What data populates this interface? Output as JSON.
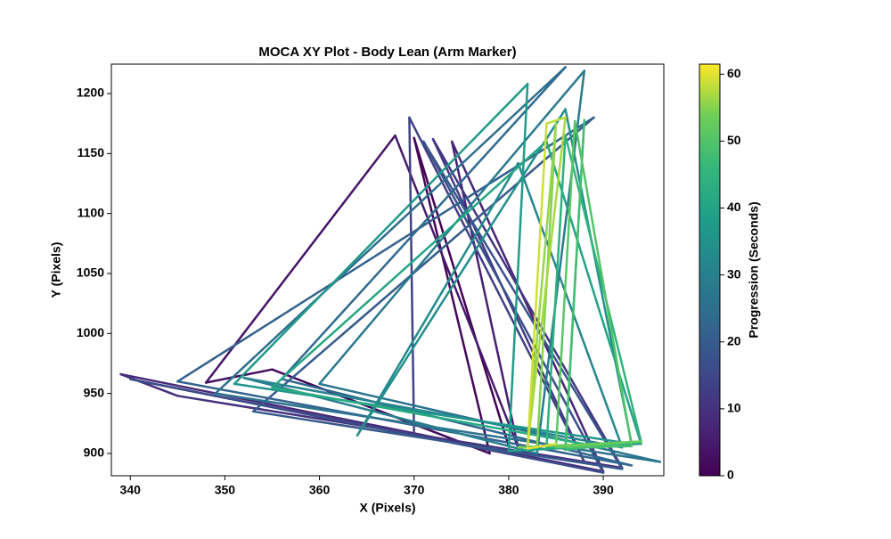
{
  "chart_data": {
    "type": "line",
    "title": "MOCA XY Plot - Body Lean (Arm Marker)",
    "xlabel": "X (Pixels)",
    "ylabel": "Y (Pixels)",
    "x": [
      380,
      370,
      378,
      355,
      348,
      368,
      381,
      374,
      390,
      339,
      345,
      392,
      372,
      388,
      369.5,
      370,
      340,
      390,
      371,
      392,
      353,
      389,
      345,
      393,
      356,
      386,
      349,
      396,
      360,
      388,
      383,
      352,
      392,
      381,
      364,
      386,
      393,
      351,
      382,
      380,
      394,
      384,
      355,
      390,
      384,
      386,
      394,
      386,
      388,
      386,
      393,
      387,
      385,
      394,
      381,
      383,
      385,
      382,
      386,
      384,
      382,
      385
    ],
    "values": [
      906,
      1163,
      900,
      970,
      959,
      1165,
      905,
      1160,
      885,
      966,
      948,
      888,
      1162,
      893,
      1180,
      915,
      962,
      884,
      1160,
      887,
      935,
      1180,
      960,
      890,
      962,
      1222,
      950,
      893,
      958,
      1219,
      900,
      963,
      905,
      1142,
      915,
      1187,
      908,
      958,
      1208,
      902,
      908,
      1160,
      955,
      905,
      905,
      1165,
      910,
      903,
      1178,
      905,
      906,
      1177,
      905,
      910,
      905,
      905,
      1175,
      906,
      1180,
      1175,
      904,
      908
    ],
    "c": [
      0,
      1,
      2,
      3,
      4,
      5,
      6,
      7,
      8,
      9,
      10,
      11,
      12,
      13,
      14,
      15,
      16,
      17,
      18,
      19,
      20,
      21,
      22,
      23,
      24,
      25,
      26,
      27,
      28,
      29,
      30,
      31,
      32,
      33,
      34,
      35,
      36,
      37,
      38,
      39,
      40,
      41,
      42,
      43,
      44,
      45,
      46,
      47,
      48,
      49,
      50,
      51,
      52,
      53,
      54,
      55,
      56,
      57,
      58,
      59,
      60,
      61
    ],
    "colormap": "viridis",
    "colorbar_label": "Progression (Seconds)",
    "clim": [
      0,
      61.5
    ],
    "cticks": [
      0,
      10,
      20,
      30,
      40,
      50,
      60
    ],
    "xlim": [
      338,
      396.4
    ],
    "xticks": [
      340,
      350,
      360,
      370,
      380,
      390
    ],
    "ylim": [
      881.4,
      1224.5
    ],
    "yticks": [
      900,
      950,
      1000,
      1050,
      1100,
      1150,
      1200
    ]
  }
}
